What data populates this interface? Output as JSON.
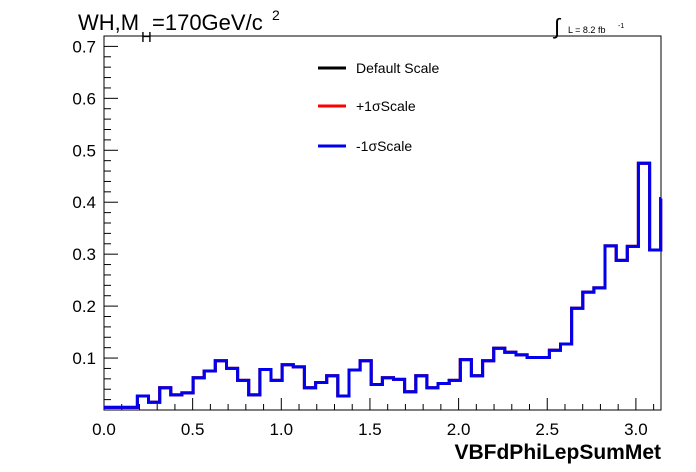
{
  "chart_data": {
    "type": "line",
    "title_main": "WH,M",
    "title_sub": "H",
    "title_rest": "=170GeV/c",
    "title_sup": "2",
    "lumi_label": "L = 8.2 fb",
    "lumi_sup": "-1",
    "xlabel": "VBFdPhiLepSumMet",
    "xlim": [
      0,
      3.1416
    ],
    "ylim": [
      0,
      0.72
    ],
    "x_ticks": [
      0.0,
      0.5,
      1.0,
      1.5,
      2.0,
      2.5,
      3.0
    ],
    "x_tick_labels": [
      "0.0",
      "0.5",
      "1.0",
      "1.5",
      "2.0",
      "2.5",
      "3.0"
    ],
    "y_ticks": [
      0.1,
      0.2,
      0.3,
      0.4,
      0.5,
      0.6,
      0.7
    ],
    "y_tick_labels": [
      "0.1",
      "0.2",
      "0.3",
      "0.4",
      "0.5",
      "0.6",
      "0.7"
    ],
    "grid": false,
    "legend_position": "top-center",
    "bin_edges_start": 0.0,
    "bin_width": 0.0628,
    "series": [
      {
        "name": "Default Scale",
        "color": "#000000",
        "values": [
          0.005,
          0.005,
          0.005,
          0.027,
          0.015,
          0.043,
          0.029,
          0.033,
          0.062,
          0.075,
          0.095,
          0.08,
          0.057,
          0.029,
          0.078,
          0.057,
          0.087,
          0.083,
          0.043,
          0.053,
          0.066,
          0.027,
          0.077,
          0.095,
          0.049,
          0.062,
          0.059,
          0.035,
          0.066,
          0.043,
          0.051,
          0.057,
          0.097,
          0.066,
          0.095,
          0.119,
          0.111,
          0.106,
          0.101,
          0.101,
          0.115,
          0.127,
          0.196,
          0.227,
          0.235,
          0.316,
          0.288,
          0.315,
          0.475,
          0.308,
          0.407
        ]
      },
      {
        "name": "+1σScale",
        "color": "#ff0000",
        "values": [
          0.005,
          0.005,
          0.005,
          0.027,
          0.015,
          0.043,
          0.029,
          0.033,
          0.062,
          0.075,
          0.095,
          0.08,
          0.057,
          0.029,
          0.078,
          0.057,
          0.087,
          0.083,
          0.043,
          0.053,
          0.066,
          0.027,
          0.077,
          0.095,
          0.049,
          0.062,
          0.059,
          0.035,
          0.066,
          0.043,
          0.051,
          0.057,
          0.097,
          0.066,
          0.095,
          0.119,
          0.111,
          0.106,
          0.101,
          0.101,
          0.115,
          0.127,
          0.196,
          0.227,
          0.235,
          0.316,
          0.288,
          0.315,
          0.475,
          0.308,
          0.407
        ]
      },
      {
        "name": "-1σScale",
        "color": "#0000ee",
        "values": [
          0.005,
          0.005,
          0.005,
          0.027,
          0.015,
          0.043,
          0.029,
          0.033,
          0.062,
          0.075,
          0.095,
          0.08,
          0.057,
          0.029,
          0.078,
          0.057,
          0.087,
          0.083,
          0.043,
          0.053,
          0.066,
          0.027,
          0.077,
          0.095,
          0.049,
          0.062,
          0.059,
          0.035,
          0.066,
          0.043,
          0.051,
          0.057,
          0.097,
          0.066,
          0.095,
          0.119,
          0.111,
          0.106,
          0.101,
          0.101,
          0.115,
          0.127,
          0.196,
          0.227,
          0.235,
          0.316,
          0.288,
          0.315,
          0.475,
          0.308,
          0.407
        ]
      }
    ]
  }
}
